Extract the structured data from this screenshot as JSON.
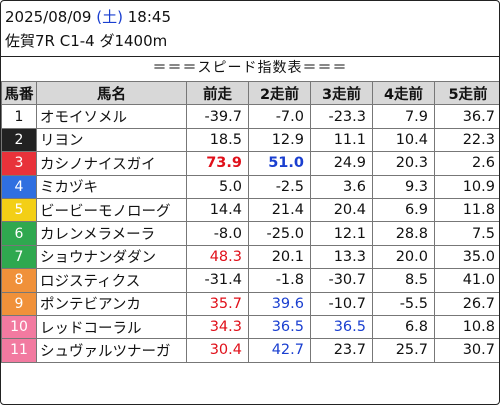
{
  "header": {
    "date": "2025/08/09",
    "weekday_open": "(",
    "weekday": "土",
    "weekday_close": ")",
    "time": "18:45",
    "race": "佐賀7R C1-4 ダ1400m"
  },
  "banner": "＝＝＝スピード指数表＝＝＝",
  "columns": [
    "馬番",
    "馬名",
    "前走",
    "2走前",
    "3走前",
    "4走前",
    "5走前"
  ],
  "rows": [
    {
      "num": "1",
      "bg": "#ffffff",
      "fg": "#111111",
      "name": "オモイソメル",
      "vals": [
        "-39.7",
        "-7.0",
        "-23.3",
        "7.9",
        "36.7"
      ],
      "styles": [
        "",
        "",
        "",
        "",
        ""
      ]
    },
    {
      "num": "2",
      "bg": "#222222",
      "fg": "#ffffff",
      "name": "リヨン",
      "vals": [
        "18.5",
        "12.9",
        "11.1",
        "10.4",
        "22.3"
      ],
      "styles": [
        "",
        "",
        "",
        "",
        ""
      ]
    },
    {
      "num": "3",
      "bg": "#e8323a",
      "fg": "#ffffff",
      "name": "カシノナイスガイ",
      "vals": [
        "73.9",
        "51.0",
        "24.9",
        "20.3",
        "2.6"
      ],
      "styles": [
        "red bold",
        "blue bold",
        "",
        "",
        ""
      ]
    },
    {
      "num": "4",
      "bg": "#2f6fe0",
      "fg": "#ffffff",
      "name": "ミカヅキ",
      "vals": [
        "5.0",
        "-2.5",
        "3.6",
        "9.3",
        "10.9"
      ],
      "styles": [
        "",
        "",
        "",
        "",
        ""
      ]
    },
    {
      "num": "5",
      "bg": "#f3cf16",
      "fg": "#ffffff",
      "name": "ビービーモノローグ",
      "vals": [
        "14.4",
        "21.4",
        "20.4",
        "6.9",
        "11.8"
      ],
      "styles": [
        "",
        "",
        "",
        "",
        ""
      ]
    },
    {
      "num": "6",
      "bg": "#2fa84f",
      "fg": "#ffffff",
      "name": "カレンメラメーラ",
      "vals": [
        "-8.0",
        "-25.0",
        "12.1",
        "28.8",
        "7.5"
      ],
      "styles": [
        "",
        "",
        "",
        "",
        ""
      ]
    },
    {
      "num": "7",
      "bg": "#2fa84f",
      "fg": "#ffffff",
      "name": "ショウナンダダン",
      "vals": [
        "48.3",
        "20.1",
        "13.3",
        "20.0",
        "35.0"
      ],
      "styles": [
        "red",
        "",
        "",
        "",
        ""
      ]
    },
    {
      "num": "8",
      "bg": "#f0913a",
      "fg": "#ffffff",
      "name": "ロジスティクス",
      "vals": [
        "-31.4",
        "-1.8",
        "-30.7",
        "8.5",
        "41.0"
      ],
      "styles": [
        "",
        "",
        "",
        "",
        ""
      ]
    },
    {
      "num": "9",
      "bg": "#f0913a",
      "fg": "#ffffff",
      "name": "ポンテビアンカ",
      "vals": [
        "35.7",
        "39.6",
        "-10.7",
        "-5.5",
        "26.7"
      ],
      "styles": [
        "red",
        "blue",
        "",
        "",
        ""
      ]
    },
    {
      "num": "10",
      "bg": "#f27aa0",
      "fg": "#ffffff",
      "name": "レッドコーラル",
      "vals": [
        "34.3",
        "36.5",
        "36.5",
        "6.8",
        "10.8"
      ],
      "styles": [
        "red",
        "blue",
        "blue",
        "",
        ""
      ]
    },
    {
      "num": "11",
      "bg": "#f27aa0",
      "fg": "#ffffff",
      "name": "シュヴァルツナーガ",
      "vals": [
        "30.4",
        "42.7",
        "23.7",
        "25.7",
        "30.7"
      ],
      "styles": [
        "red",
        "blue",
        "",
        "",
        ""
      ]
    }
  ]
}
